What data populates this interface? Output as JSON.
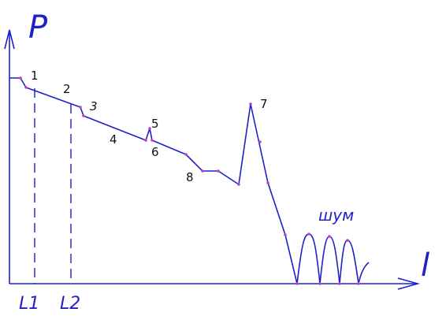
{
  "axes": {
    "y_label": "P",
    "x_label": "l",
    "marks": [
      {
        "label": "L1"
      },
      {
        "label": "L2"
      }
    ]
  },
  "points": [
    {
      "label": "1"
    },
    {
      "label": "2"
    },
    {
      "label": "3"
    },
    {
      "label": "4"
    },
    {
      "label": "5"
    },
    {
      "label": "6"
    },
    {
      "label": "7"
    },
    {
      "label": "8"
    }
  ],
  "noise_label": "шум",
  "colors": {
    "trace": "#2020c8",
    "vertex": "#c040c0",
    "text": "#111111"
  }
}
